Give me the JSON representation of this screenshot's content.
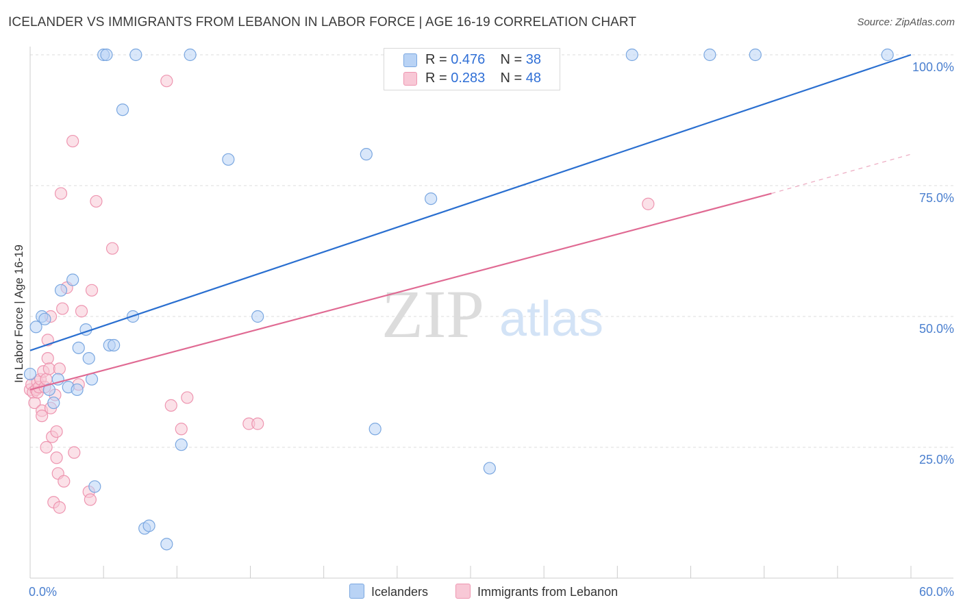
{
  "header": {
    "title": "ICELANDER VS IMMIGRANTS FROM LEBANON IN LABOR FORCE | AGE 16-19 CORRELATION CHART",
    "source": "Source: ZipAtlas.com"
  },
  "watermark": {
    "zip": "ZIP",
    "atlas": "atlas"
  },
  "colors": {
    "blue_fill": "#b9d3f5",
    "blue_stroke": "#7aa7e0",
    "blue_line": "#2a6fd0",
    "pink_fill": "#f8c8d6",
    "pink_stroke": "#ee95b0",
    "pink_line": "#e06a93",
    "grid": "#dddddd",
    "tick_label": "#4a7fcf"
  },
  "legend": {
    "rows": [
      {
        "r_label": "R = ",
        "r_value": "0.476",
        "n_label": "N = ",
        "n_value": "38"
      },
      {
        "r_label": "R = ",
        "r_value": "0.283",
        "n_label": "N = ",
        "n_value": "48"
      }
    ]
  },
  "bottom_legend": {
    "icelanders": "Icelanders",
    "lebanon": "Immigrants from Lebanon"
  },
  "chart_data": {
    "type": "scatter",
    "title": "ICELANDER VS IMMIGRANTS FROM LEBANON IN LABOR FORCE | AGE 16-19 CORRELATION CHART",
    "xlabel": "",
    "ylabel": "In Labor Force | Age 16-19",
    "xlim": [
      0,
      60
    ],
    "ylim": [
      0,
      100
    ],
    "grid": true,
    "x_tick_labels": [
      {
        "value": 0,
        "label": "0.0%"
      },
      {
        "value": 60,
        "label": "60.0%"
      }
    ],
    "y_tick_labels": [
      {
        "value": 25,
        "label": "25.0%"
      },
      {
        "value": 50,
        "label": "50.0%"
      },
      {
        "value": 75,
        "label": "75.0%"
      },
      {
        "value": 100,
        "label": "100.0%"
      }
    ],
    "series": [
      {
        "name": "Icelanders",
        "r": 0.476,
        "n": 38,
        "trend": {
          "x0": 0,
          "y0": 43.5,
          "x1": 60,
          "y1": 100.0
        },
        "points": [
          [
            0.0,
            39.0
          ],
          [
            0.4,
            48.0
          ],
          [
            0.8,
            50.0
          ],
          [
            1.0,
            49.5
          ],
          [
            1.3,
            36.0
          ],
          [
            1.6,
            33.5
          ],
          [
            1.9,
            38.0
          ],
          [
            2.1,
            55.0
          ],
          [
            2.6,
            36.5
          ],
          [
            2.9,
            57.0
          ],
          [
            3.2,
            36.0
          ],
          [
            3.3,
            44.0
          ],
          [
            3.8,
            47.5
          ],
          [
            4.0,
            42.0
          ],
          [
            4.2,
            38.0
          ],
          [
            4.4,
            17.5
          ],
          [
            5.0,
            100.0
          ],
          [
            5.2,
            100.0
          ],
          [
            5.4,
            44.5
          ],
          [
            5.7,
            44.5
          ],
          [
            6.3,
            89.5
          ],
          [
            7.0,
            50.0
          ],
          [
            7.2,
            100.0
          ],
          [
            7.8,
            9.5
          ],
          [
            8.1,
            10.0
          ],
          [
            9.3,
            6.5
          ],
          [
            10.3,
            25.5
          ],
          [
            10.9,
            100.0
          ],
          [
            13.5,
            80.0
          ],
          [
            15.5,
            50.0
          ],
          [
            22.9,
            81.0
          ],
          [
            23.5,
            28.5
          ],
          [
            27.3,
            72.5
          ],
          [
            31.3,
            21.0
          ],
          [
            41.0,
            100.0
          ],
          [
            46.3,
            100.0
          ],
          [
            49.4,
            100.0
          ],
          [
            58.4,
            100.0
          ]
        ]
      },
      {
        "name": "Immigrants from Lebanon",
        "r": 0.283,
        "n": 48,
        "trend": {
          "x0": 0,
          "y0": 36.0,
          "x1": 50.5,
          "y1": 73.5
        },
        "trend_dashed": {
          "x0": 50.5,
          "y0": 73.5,
          "x1": 60,
          "y1": 81.0
        },
        "points": [
          [
            0.0,
            36.0
          ],
          [
            0.1,
            37.0
          ],
          [
            0.2,
            35.5
          ],
          [
            0.3,
            33.5
          ],
          [
            0.4,
            36.0
          ],
          [
            0.5,
            37.5
          ],
          [
            0.5,
            35.5
          ],
          [
            0.6,
            36.5
          ],
          [
            0.7,
            38.0
          ],
          [
            0.8,
            32.0
          ],
          [
            0.8,
            31.0
          ],
          [
            0.9,
            39.5
          ],
          [
            1.0,
            36.5
          ],
          [
            1.1,
            38.0
          ],
          [
            1.1,
            25.0
          ],
          [
            1.2,
            45.5
          ],
          [
            1.2,
            42.0
          ],
          [
            1.3,
            40.0
          ],
          [
            1.4,
            32.5
          ],
          [
            1.4,
            50.0
          ],
          [
            1.5,
            27.0
          ],
          [
            1.6,
            14.5
          ],
          [
            1.7,
            35.0
          ],
          [
            1.8,
            23.0
          ],
          [
            1.8,
            28.0
          ],
          [
            1.9,
            20.0
          ],
          [
            2.0,
            40.0
          ],
          [
            2.0,
            13.5
          ],
          [
            2.1,
            73.5
          ],
          [
            2.2,
            51.5
          ],
          [
            2.3,
            18.5
          ],
          [
            2.5,
            55.5
          ],
          [
            2.9,
            83.5
          ],
          [
            3.0,
            24.0
          ],
          [
            3.3,
            37.0
          ],
          [
            3.5,
            51.0
          ],
          [
            4.0,
            16.5
          ],
          [
            4.1,
            15.0
          ],
          [
            4.2,
            55.0
          ],
          [
            4.5,
            72.0
          ],
          [
            5.6,
            63.0
          ],
          [
            9.3,
            95.0
          ],
          [
            9.6,
            33.0
          ],
          [
            10.3,
            28.5
          ],
          [
            10.7,
            34.5
          ],
          [
            14.9,
            29.5
          ],
          [
            15.5,
            29.5
          ],
          [
            42.1,
            71.5
          ]
        ]
      }
    ]
  }
}
